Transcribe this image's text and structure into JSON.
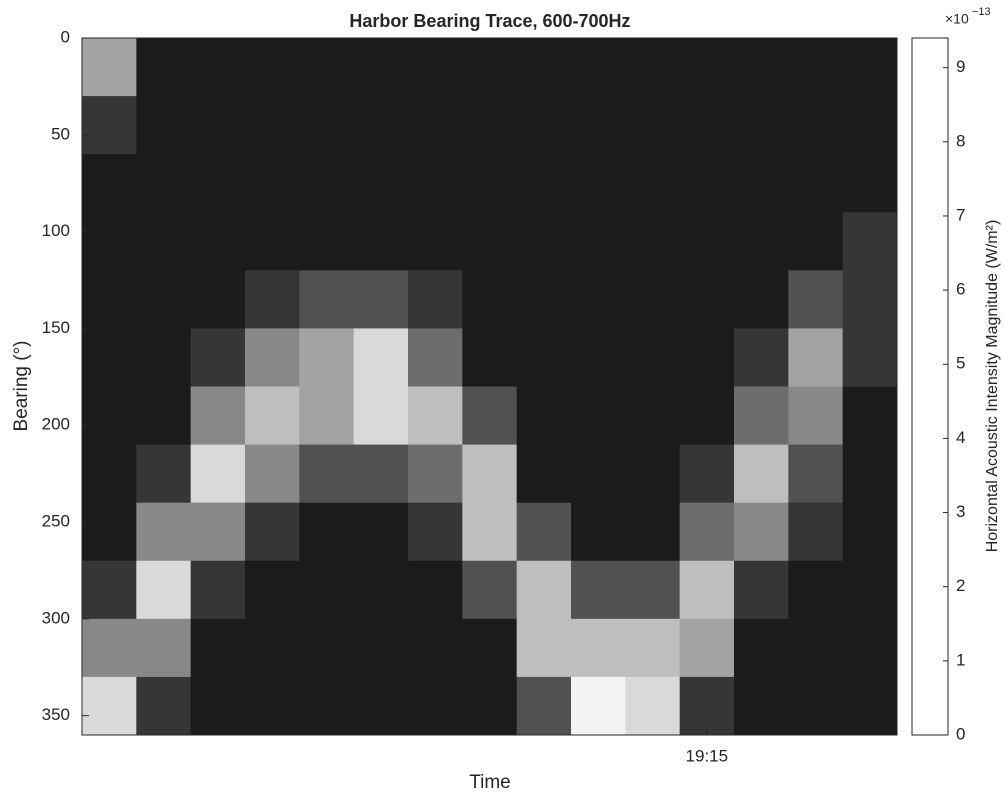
{
  "chart_data": {
    "type": "heatmap",
    "title": "Harbor Bearing Trace, 600-700Hz",
    "xlabel": "Time",
    "ylabel": "Bearing (°)",
    "categories": [
      null,
      null,
      null,
      null,
      null,
      null,
      null,
      null,
      null,
      null,
      null,
      "19:15",
      null,
      null,
      null
    ],
    "ybins": [
      0,
      30,
      60,
      90,
      120,
      150,
      180,
      210,
      240,
      270,
      300,
      330,
      360
    ],
    "ylim": [
      0,
      360
    ],
    "yticks": [
      0,
      50,
      100,
      150,
      200,
      250,
      300,
      350
    ],
    "y_reversed": true,
    "z": [
      [
        6,
        1,
        1,
        1,
        1,
        1,
        1,
        1,
        1,
        1,
        1,
        1,
        1,
        1,
        1
      ],
      [
        2,
        1,
        1,
        1,
        1,
        1,
        1,
        1,
        1,
        1,
        1,
        1,
        1,
        1,
        1
      ],
      [
        1,
        1,
        1,
        1,
        1,
        1,
        1,
        1,
        1,
        1,
        1,
        1,
        1,
        1,
        1
      ],
      [
        1,
        1,
        1,
        1,
        1,
        1,
        1,
        1,
        1,
        1,
        1,
        1,
        1,
        1,
        2
      ],
      [
        1,
        1,
        1,
        2,
        3,
        3,
        2,
        1,
        1,
        1,
        1,
        1,
        1,
        3,
        2
      ],
      [
        1,
        1,
        2,
        5,
        6,
        8,
        4,
        1,
        1,
        1,
        1,
        1,
        2,
        6,
        2
      ],
      [
        1,
        1,
        5,
        7,
        6,
        8,
        7,
        3,
        1,
        1,
        1,
        1,
        4,
        5,
        1
      ],
      [
        1,
        2,
        8,
        5,
        3,
        3,
        4,
        7,
        1,
        1,
        1,
        2,
        7,
        3,
        1
      ],
      [
        1,
        5,
        5,
        2,
        1,
        1,
        2,
        7,
        3,
        1,
        1,
        4,
        5,
        2,
        1
      ],
      [
        2,
        8,
        2,
        1,
        1,
        1,
        1,
        3,
        7,
        3,
        3,
        7,
        2,
        1,
        1
      ],
      [
        5,
        5,
        1,
        1,
        1,
        1,
        1,
        1,
        7,
        7,
        7,
        6,
        1,
        1,
        1
      ],
      [
        8,
        2,
        1,
        1,
        1,
        1,
        1,
        1,
        3,
        9,
        8,
        2,
        1,
        1,
        1
      ]
    ],
    "colorbar": {
      "label": "Horizontal Acoustic Intensity Magnitude (W/m²)",
      "clim": [
        0,
        9.4
      ],
      "ticks": [
        0,
        1,
        2,
        3,
        4,
        5,
        6,
        7,
        8,
        9
      ],
      "multiplier": {
        "base": "×10",
        "exponent": "−13"
      },
      "colormap": [
        "#000000",
        "#ffffff"
      ]
    }
  }
}
